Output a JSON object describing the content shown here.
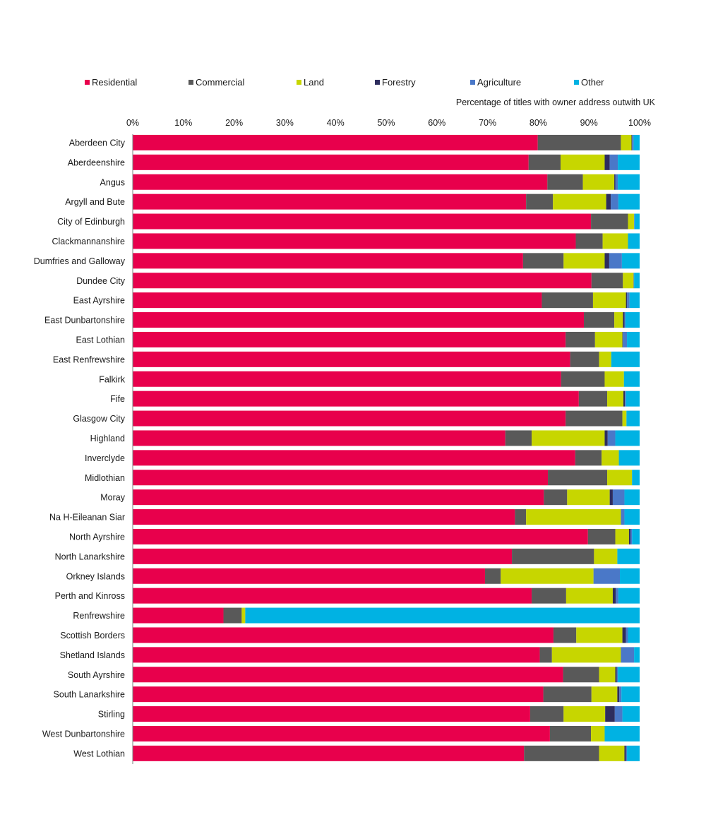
{
  "chart_data": {
    "type": "bar",
    "orientation": "horizontal",
    "stacked": true,
    "title": "",
    "annotation": "Percentage of titles with owner address outwith UK",
    "xlim": [
      0,
      100
    ],
    "x_ticks": [
      "0%",
      "10%",
      "20%",
      "30%",
      "40%",
      "50%",
      "60%",
      "70%",
      "80%",
      "90%",
      "100%"
    ],
    "legend_position": "top",
    "grid": false,
    "categories": [
      "Aberdeen City",
      "Aberdeenshire",
      "Angus",
      "Argyll and Bute",
      "City of Edinburgh",
      "Clackmannanshire",
      "Dumfries and Galloway",
      "Dundee City",
      "East Ayrshire",
      "East Dunbartonshire",
      "East Lothian",
      "East Renfrewshire",
      "Falkirk",
      "Fife",
      "Glasgow City",
      "Highland",
      "Inverclyde",
      "Midlothian",
      "Moray",
      "Na H-Eileanan Siar",
      "North Ayrshire",
      "North Lanarkshire",
      "Orkney Islands",
      "Perth and Kinross",
      "Renfrewshire",
      "Scottish Borders",
      "Shetland Islands",
      "South Ayrshire",
      "South Lanarkshire",
      "Stirling",
      "West Dunbartonshire",
      "West Lothian"
    ],
    "series": [
      {
        "name": "Residential",
        "color": "#e8004c",
        "values": [
          79.9,
          78.1,
          81.8,
          77.6,
          90.4,
          87.4,
          77.0,
          90.5,
          80.7,
          89.0,
          85.4,
          86.3,
          84.5,
          88.0,
          85.4,
          73.5,
          87.3,
          81.9,
          81.1,
          75.4,
          89.8,
          74.8,
          69.5,
          78.7,
          17.9,
          83.0,
          80.3,
          84.9,
          81.0,
          78.4,
          82.3,
          77.2
        ]
      },
      {
        "name": "Commercial",
        "color": "#595959",
        "values": [
          16.4,
          6.3,
          7.0,
          5.3,
          7.3,
          5.3,
          8.0,
          6.2,
          10.1,
          6.0,
          5.8,
          5.7,
          8.6,
          5.6,
          11.2,
          5.2,
          5.2,
          11.7,
          4.6,
          2.2,
          5.4,
          16.2,
          3.1,
          6.8,
          3.6,
          4.5,
          2.4,
          7.1,
          9.5,
          6.6,
          8.1,
          14.8
        ]
      },
      {
        "name": "Land",
        "color": "#c7d600",
        "values": [
          2.1,
          8.7,
          6.2,
          10.5,
          1.2,
          5.0,
          8.1,
          2.1,
          6.5,
          1.7,
          5.4,
          2.4,
          3.8,
          3.2,
          0.8,
          14.4,
          3.4,
          4.9,
          8.4,
          18.7,
          2.7,
          4.6,
          18.3,
          9.2,
          0.7,
          9.1,
          13.6,
          3.2,
          5.1,
          8.2,
          2.7,
          5.0
        ]
      },
      {
        "name": "Forestry",
        "color": "#2e2d5e",
        "values": [
          0.1,
          1.0,
          0.2,
          0.9,
          0.0,
          0.0,
          0.9,
          0.0,
          0.2,
          0.3,
          0.1,
          0.0,
          0.0,
          0.3,
          0.0,
          0.6,
          0.0,
          0.0,
          0.6,
          0.0,
          0.3,
          0.0,
          0.0,
          0.6,
          0.0,
          0.7,
          0.0,
          0.3,
          0.4,
          1.9,
          0.0,
          0.3
        ]
      },
      {
        "name": "Agriculture",
        "color": "#4a78c8",
        "values": [
          0.3,
          1.6,
          0.5,
          1.5,
          0.1,
          0.0,
          2.5,
          0.1,
          0.5,
          0.2,
          0.8,
          0.0,
          0.0,
          0.2,
          0.0,
          1.5,
          0.0,
          0.0,
          2.3,
          0.7,
          0.3,
          0.0,
          5.2,
          0.5,
          0.0,
          0.4,
          2.6,
          0.2,
          0.4,
          1.5,
          0.0,
          0.2
        ]
      },
      {
        "name": "Other",
        "color": "#00b2e3",
        "values": [
          1.2,
          4.3,
          4.3,
          4.2,
          1.0,
          2.3,
          3.5,
          1.1,
          2.0,
          2.8,
          2.5,
          5.6,
          3.1,
          2.7,
          2.6,
          4.8,
          4.1,
          1.5,
          3.0,
          3.0,
          1.5,
          4.4,
          3.9,
          4.2,
          77.8,
          2.3,
          1.1,
          4.3,
          3.6,
          3.4,
          6.9,
          2.5
        ]
      }
    ]
  }
}
